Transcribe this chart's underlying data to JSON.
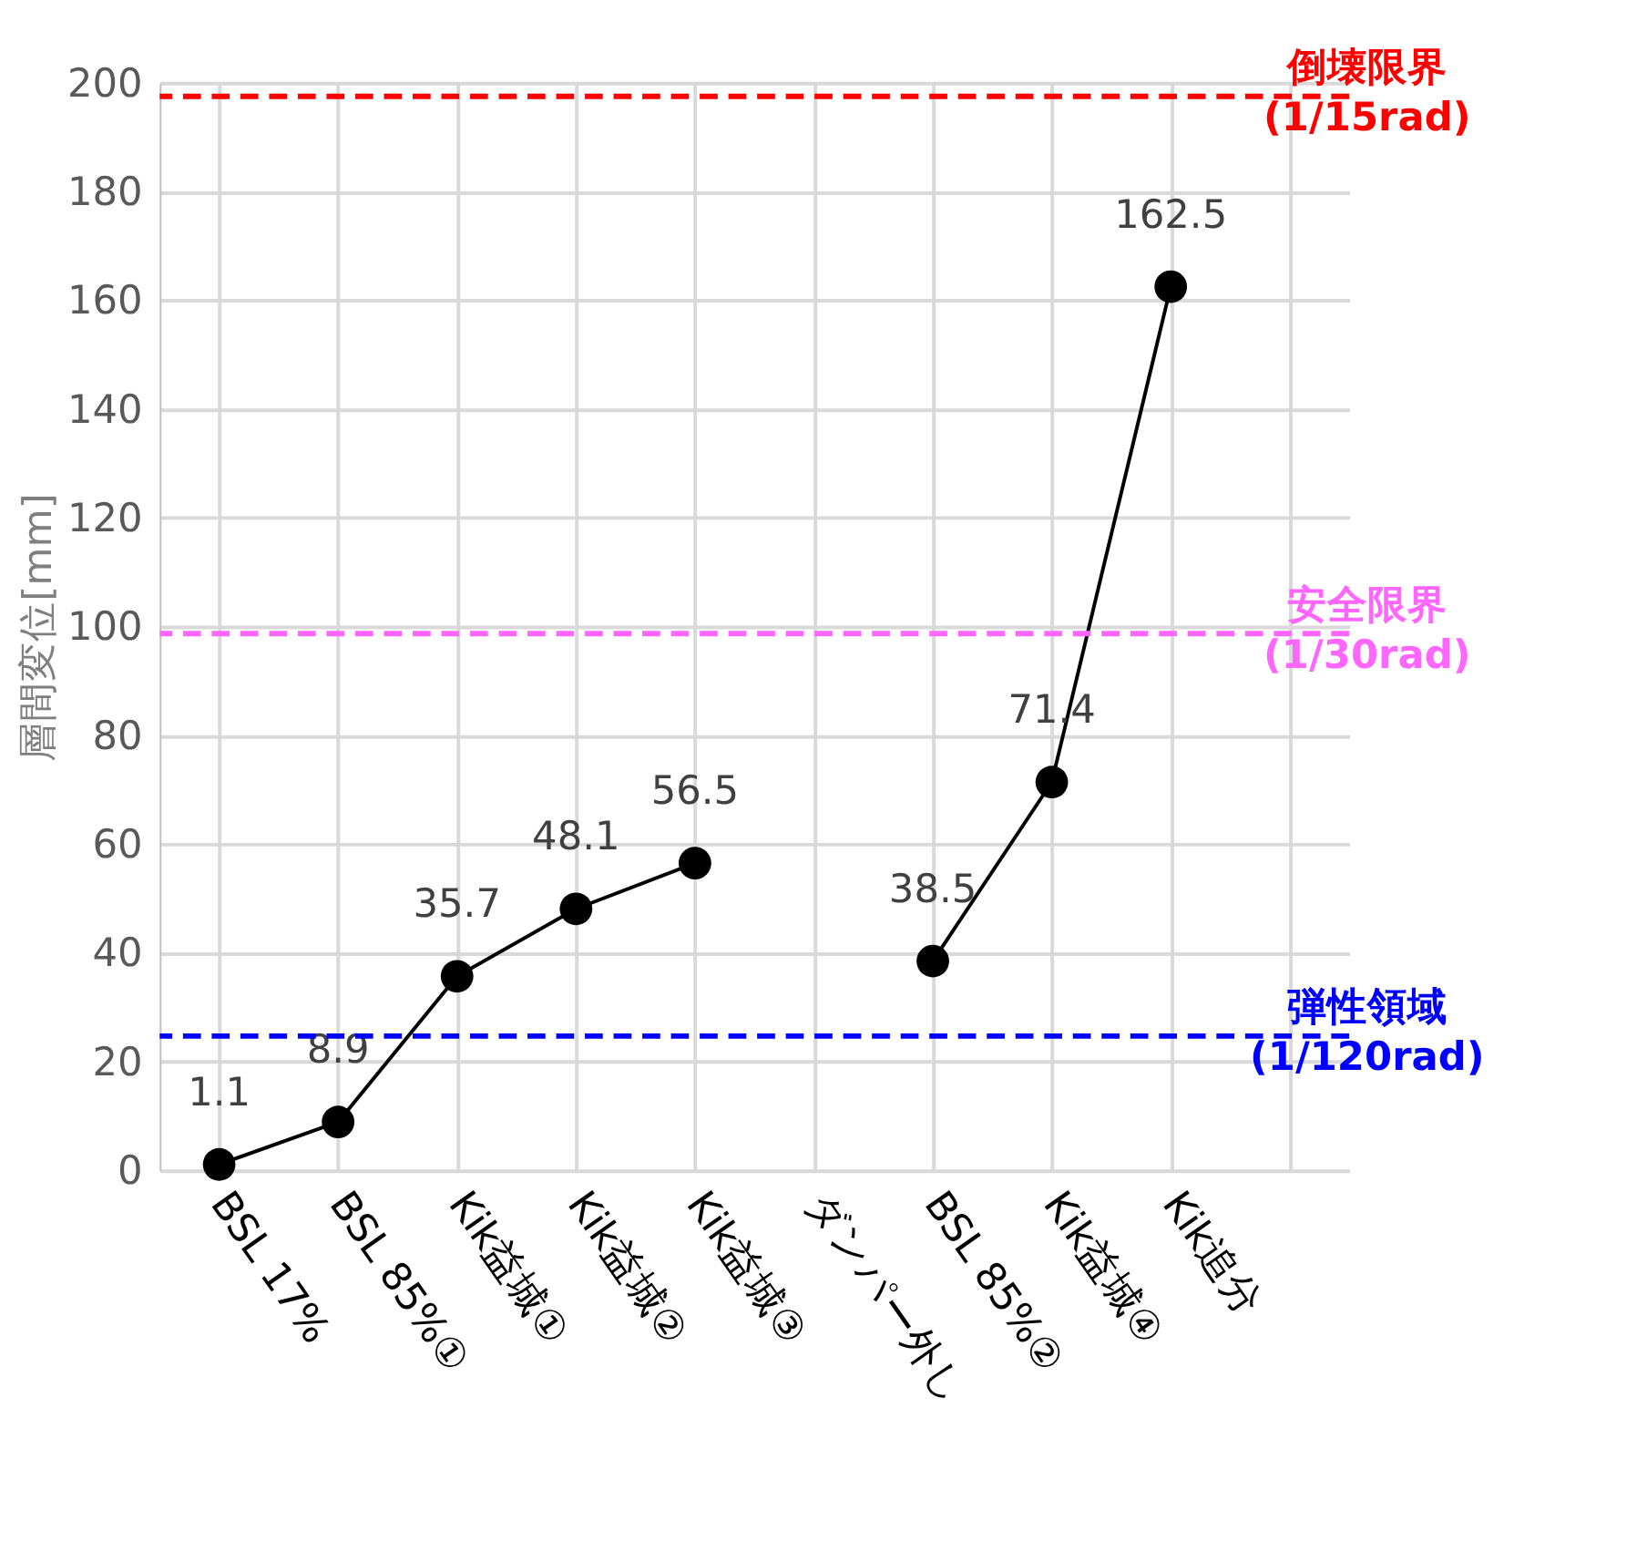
{
  "chart_data": {
    "type": "line",
    "ylabel": "層間変位[mm]",
    "categories": [
      "BSL 17%",
      "BSL 85%①",
      "Kik益城①",
      "Kik益城②",
      "Kik益城③",
      "ダンパー外し",
      "BSL 85%②",
      "Kik益城④",
      "Kik追分",
      null
    ],
    "series": [
      {
        "color": "#000000",
        "values": [
          1.1,
          8.9,
          35.7,
          48.1,
          56.5,
          null,
          38.5,
          71.4,
          162.5,
          null
        ]
      }
    ],
    "ylim": [
      0,
      200
    ],
    "yticks": [
      0,
      20,
      40,
      60,
      80,
      100,
      120,
      140,
      160,
      180,
      200
    ],
    "grid": true,
    "marker": "circle",
    "line_style": "solid",
    "data_labels": true,
    "ref_lines": [
      {
        "axis": "y",
        "value": 197.5,
        "label": "倒壊限界\n(1/15rad)",
        "color": "#ff0000",
        "line_style": "dashed"
      },
      {
        "axis": "y",
        "value": 98.7,
        "label": "安全限界\n(1/30rad)",
        "color": "#ff66ff",
        "line_style": "dashed"
      },
      {
        "axis": "y",
        "value": 24.7,
        "label": "弾性領域\n(1/120rad)",
        "color": "#0000ff",
        "line_style": "dashed"
      }
    ]
  }
}
